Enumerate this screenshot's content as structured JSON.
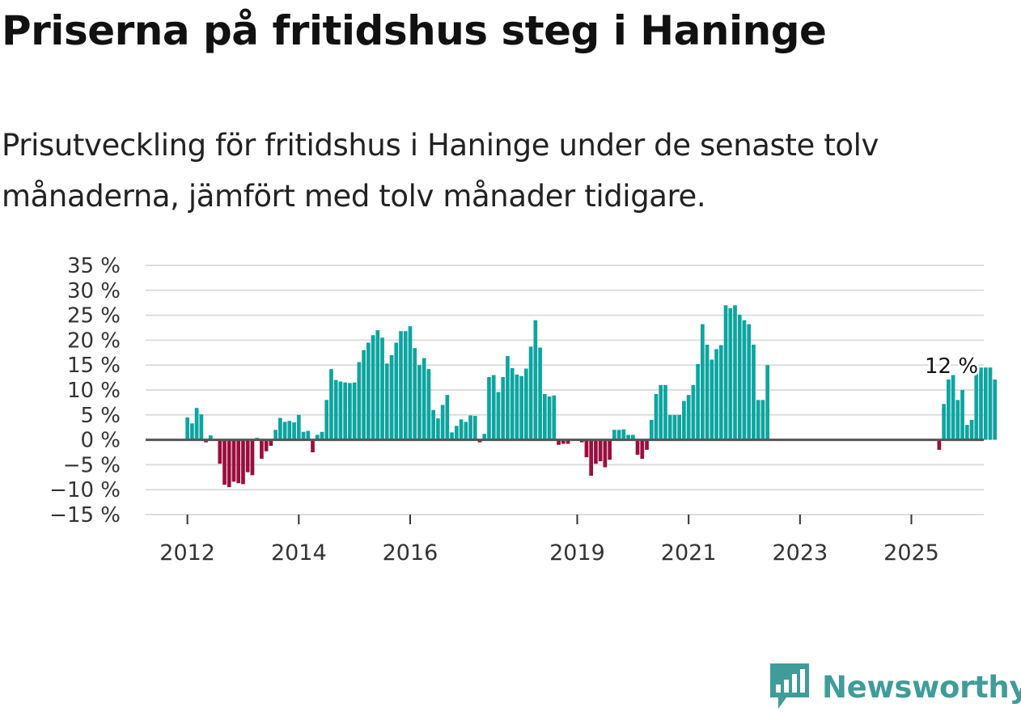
{
  "title": "Priserna på fritidshus steg i Haninge",
  "subtitle": "Prisutveckling för fritidshus i Haninge under de senaste tolv månaderna, jämfört med tolv månader tidigare.",
  "brand": {
    "name": "Newsworthy",
    "logo_icon": "newsworthy-bar-chart-icon"
  },
  "colors": {
    "positive": "#0da5a0",
    "negative": "#9a0e3e",
    "grid": "#dddddd",
    "zero_line": "#555555",
    "brand": "#3f9c99"
  },
  "chart_data": {
    "type": "bar",
    "ylim": [
      -15,
      35
    ],
    "y_ticks": [
      35,
      30,
      25,
      20,
      15,
      10,
      5,
      0,
      -5,
      -10,
      -15
    ],
    "y_tick_labels": [
      "35 %",
      "30 %",
      "25 %",
      "20 %",
      "15 %",
      "10 %",
      "5 %",
      "0 %",
      "−5 %",
      "−10 %",
      "−15 %"
    ],
    "x_tick_labels": [
      "2012",
      "2014",
      "2016",
      "2019",
      "2021",
      "2023",
      "2025"
    ],
    "x_tick_positions": [
      2012.0,
      2014.0,
      2016.0,
      2019.0,
      2021.0,
      2023.0,
      2025.0
    ],
    "x_range": [
      2011.25,
      2026.3
    ],
    "grid": true,
    "last_value_label": "12 %",
    "series": [
      {
        "x_start": 2012.0,
        "step": 0.08333,
        "values": [
          4.5,
          3.3,
          6.4,
          5.1,
          -0.5,
          0.9,
          0,
          -4.8,
          -9.0,
          -9.5,
          -8.4,
          -8.7,
          -8.9,
          -6.5,
          -7.1,
          0.4,
          -3.8,
          -2.3,
          -1.2,
          2.0,
          4.4,
          3.6,
          3.8,
          3.5,
          5.0,
          1.6,
          1.8,
          -2.5,
          1.0,
          1.6,
          8.0,
          14.2,
          12.0,
          11.7,
          11.5,
          11.4,
          11.5,
          15.6,
          18.0,
          19.5,
          21.0,
          22.0,
          20.5,
          15.3,
          17.0,
          19.5,
          21.8,
          21.8,
          22.8,
          18.4,
          15.0,
          16.4,
          14.2,
          6.0,
          4.3,
          7.0,
          9.0,
          1.5,
          2.8,
          4.1,
          3.6,
          4.9,
          4.8,
          -0.5,
          1.2,
          12.6,
          13.0,
          9.6,
          12.6,
          16.8,
          14.4,
          13.1,
          12.8,
          14.3,
          18.7,
          24.0,
          18.5,
          9.2,
          8.7,
          8.9,
          -1.0,
          -0.8,
          -0.8,
          0,
          0,
          -0.5,
          -3.5,
          -7.2,
          -4.8,
          -4.3,
          -5.5,
          -4.0,
          2.0,
          2.0,
          2.1,
          1.0,
          1.0,
          -3.0,
          -3.8,
          -2.0,
          4.0,
          9.2,
          11.0,
          11.0,
          5.0,
          5.0,
          5.0,
          7.8,
          9.0,
          11.0,
          15.2,
          23.2,
          19.1,
          16.1,
          18.2,
          19.0,
          27.0,
          26.4,
          27.0,
          25.1,
          24.0,
          23.2,
          19.1,
          8.0,
          8.0,
          15.0,
          null,
          null,
          null,
          null,
          null,
          null,
          null,
          null,
          null,
          null,
          null,
          null,
          null,
          null,
          null,
          null,
          null,
          null,
          null,
          null,
          null,
          null,
          null,
          null,
          null,
          null,
          null,
          null,
          null,
          null,
          null,
          null,
          null,
          null,
          null,
          null,
          -2.0,
          7.2,
          12.1,
          13.0,
          8.0,
          10.0,
          3.0,
          4.0,
          14.5,
          14.5,
          14.5,
          14.5,
          12.1
        ]
      }
    ]
  }
}
